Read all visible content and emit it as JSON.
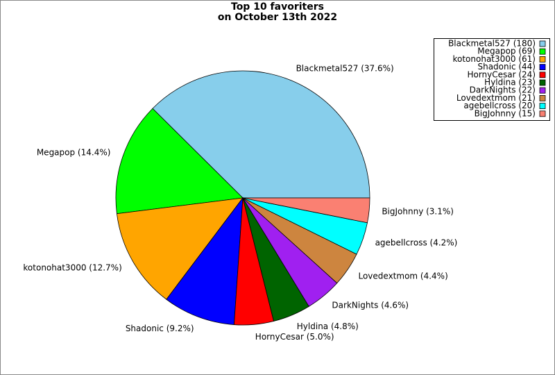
{
  "chart_data": {
    "type": "pie",
    "title": "Top 10 favoriters",
    "subtitle": "on October 13th 2022",
    "categories": [
      "Blackmetal527",
      "Megapop",
      "kotonohat3000",
      "Shadonic",
      "HornyCesar",
      "Hyldina",
      "DarkNights",
      "Lovedextmom",
      "agebellcross",
      "BigJohnny"
    ],
    "values": [
      180,
      69,
      61,
      44,
      24,
      23,
      22,
      21,
      20,
      15
    ],
    "value_labels": [
      "Blackmetal527 (37.6%)",
      "Megapop (14.4%)",
      "kotonohat3000 (12.7%)",
      "Shadonic (9.2%)",
      "HornyCesar (5.0%)",
      "Hyldina (4.8%)",
      "DarkNights (4.6%)",
      "Lovedextmom (4.4%)",
      "agebellcross (4.2%)",
      "BigJohnny (3.1%)"
    ],
    "legend_labels": [
      "Blackmetal527 (180)",
      "Megapop (69)",
      "kotonohat3000 (61)",
      "Shadonic (44)",
      "HornyCesar (24)",
      "Hyldina (23)",
      "DarkNights (22)",
      "Lovedextmom (21)",
      "agebellcross (20)",
      "BigJohnny (15)"
    ],
    "colors": [
      "#87ceeb",
      "#00ff00",
      "#ffa500",
      "#0000ff",
      "#ff0000",
      "#006400",
      "#a020f0",
      "#cd853f",
      "#00ffff",
      "#fa8072"
    ],
    "legend": "upper right"
  }
}
